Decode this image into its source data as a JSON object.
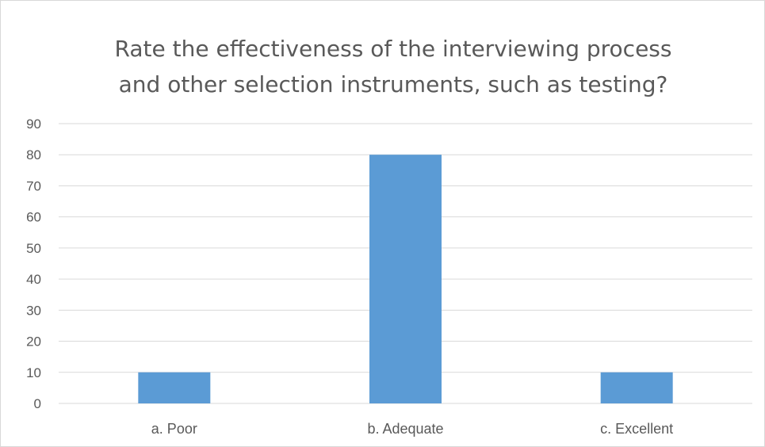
{
  "chart_data": {
    "type": "bar",
    "title": "Rate the effectiveness of the interviewing process and other selection instruments, such as testing?",
    "title_lines": [
      "Rate the effectiveness of the interviewing process",
      "and other selection instruments, such as testing?"
    ],
    "categories": [
      "a. Poor",
      "b. Adequate",
      "c. Excellent"
    ],
    "values": [
      10,
      80,
      10
    ],
    "ylim": [
      0,
      90
    ],
    "yticks": [
      0,
      10,
      20,
      30,
      40,
      50,
      60,
      70,
      80,
      90
    ],
    "xlabel": "",
    "ylabel": "",
    "grid": true,
    "legend": "none",
    "colors": {
      "bar": "#5b9bd5",
      "grid": "#d9d9d9",
      "text": "#595959",
      "border": "#d9d9d9"
    }
  }
}
